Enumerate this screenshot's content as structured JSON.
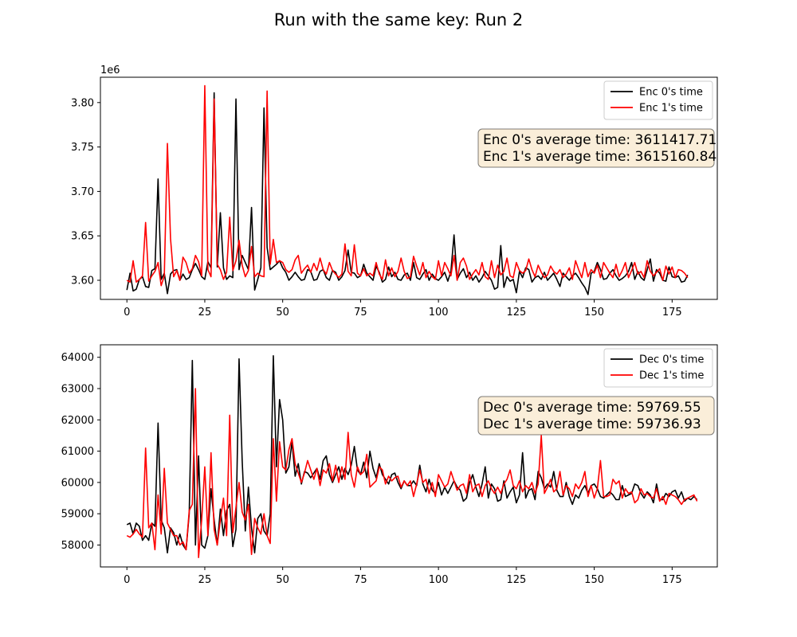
{
  "figure_title": "Run with the same key: Run 2",
  "chart_data": [
    {
      "type": "line",
      "id": "enc",
      "offset_label": "1e6",
      "xlim": [
        -8.5,
        189.5
      ],
      "ylim": [
        3.5785,
        3.8285
      ],
      "x_ticks": [
        0,
        25,
        50,
        75,
        100,
        125,
        150,
        175
      ],
      "y_ticks": [
        3.6,
        3.65,
        3.7,
        3.75,
        3.8
      ],
      "y_tick_labels": [
        "3.60",
        "3.65",
        "3.70",
        "3.75",
        "3.80"
      ],
      "legend_position": "top-right",
      "annotation": [
        "Enc 0's average time: 3611417.71",
        "Enc 1's average time: 3615160.84"
      ],
      "series": [
        {
          "name": "Enc 0's time",
          "color": "#000000",
          "y": [
            3.589,
            3.608,
            3.588,
            3.59,
            3.601,
            3.604,
            3.593,
            3.592,
            3.611,
            3.613,
            3.714,
            3.601,
            3.608,
            3.585,
            3.607,
            3.611,
            3.612,
            3.6,
            3.607,
            3.601,
            3.603,
            3.612,
            3.619,
            3.612,
            3.604,
            3.601,
            3.621,
            3.614,
            3.811,
            3.615,
            3.676,
            3.614,
            3.601,
            3.605,
            3.603,
            3.804,
            3.612,
            3.628,
            3.62,
            3.612,
            3.682,
            3.589,
            3.601,
            3.614,
            3.794,
            3.637,
            3.612,
            3.615,
            3.618,
            3.622,
            3.614,
            3.609,
            3.6,
            3.604,
            3.609,
            3.604,
            3.6,
            3.601,
            3.612,
            3.61,
            3.6,
            3.601,
            3.61,
            3.612,
            3.603,
            3.6,
            3.611,
            3.609,
            3.6,
            3.604,
            3.611,
            3.634,
            3.609,
            3.608,
            3.603,
            3.605,
            3.618,
            3.608,
            3.604,
            3.6,
            3.616,
            3.609,
            3.598,
            3.601,
            3.615,
            3.604,
            3.609,
            3.601,
            3.6,
            3.606,
            3.608,
            3.6,
            3.62,
            3.603,
            3.601,
            3.607,
            3.612,
            3.6,
            3.607,
            3.602,
            3.6,
            3.604,
            3.609,
            3.599,
            3.61,
            3.651,
            3.601,
            3.608,
            3.613,
            3.603,
            3.609,
            3.6,
            3.605,
            3.598,
            3.603,
            3.61,
            3.605,
            3.6,
            3.59,
            3.592,
            3.639,
            3.592,
            3.604,
            3.599,
            3.601,
            3.586,
            3.61,
            3.603,
            3.614,
            3.612,
            3.598,
            3.603,
            3.605,
            3.601,
            3.609,
            3.6,
            3.604,
            3.608,
            3.601,
            3.593,
            3.608,
            3.604,
            3.6,
            3.605,
            3.608,
            3.603,
            3.597,
            3.592,
            3.584,
            3.608,
            3.61,
            3.62,
            3.612,
            3.601,
            3.602,
            3.608,
            3.612,
            3.605,
            3.6,
            3.602,
            3.605,
            3.61,
            3.62,
            3.601,
            3.61,
            3.603,
            3.6,
            3.612,
            3.624,
            3.599,
            3.612,
            3.608,
            3.6,
            3.599,
            3.615,
            3.604,
            3.603,
            3.605,
            3.598,
            3.599,
            3.606
          ],
          "x_start": 0
        },
        {
          "name": "Enc 1's time",
          "color": "#ff0000",
          "y": [
            3.6,
            3.598,
            3.622,
            3.598,
            3.601,
            3.605,
            3.665,
            3.599,
            3.605,
            3.61,
            3.62,
            3.594,
            3.605,
            3.754,
            3.647,
            3.604,
            3.611,
            3.6,
            3.626,
            3.62,
            3.608,
            3.613,
            3.628,
            3.621,
            3.605,
            3.819,
            3.612,
            3.604,
            3.804,
            3.618,
            3.612,
            3.601,
            3.609,
            3.671,
            3.611,
            3.622,
            3.645,
            3.617,
            3.604,
            3.611,
            3.638,
            3.604,
            3.608,
            3.605,
            3.604,
            3.813,
            3.618,
            3.646,
            3.62,
            3.622,
            3.62,
            3.612,
            3.609,
            3.612,
            3.623,
            3.628,
            3.608,
            3.613,
            3.617,
            3.609,
            3.619,
            3.611,
            3.625,
            3.612,
            3.607,
            3.62,
            3.611,
            3.607,
            3.603,
            3.607,
            3.641,
            3.61,
            3.605,
            3.64,
            3.608,
            3.605,
            3.613,
            3.605,
            3.608,
            3.605,
            3.62,
            3.607,
            3.601,
            3.623,
            3.605,
            3.614,
            3.604,
            3.61,
            3.625,
            3.61,
            3.602,
            3.604,
            3.627,
            3.616,
            3.606,
            3.62,
            3.603,
            3.61,
            3.604,
            3.601,
            3.622,
            3.605,
            3.62,
            3.613,
            3.605,
            3.628,
            3.6,
            3.62,
            3.625,
            3.616,
            3.601,
            3.607,
            3.612,
            3.606,
            3.62,
            3.604,
            3.601,
            3.622,
            3.603,
            3.617,
            3.606,
            3.61,
            3.625,
            3.605,
            3.603,
            3.62,
            3.611,
            3.608,
            3.611,
            3.624,
            3.612,
            3.604,
            3.617,
            3.609,
            3.603,
            3.606,
            3.616,
            3.61,
            3.607,
            3.612,
            3.603,
            3.607,
            3.614,
            3.601,
            3.622,
            3.612,
            3.603,
            3.62,
            3.604,
            3.612,
            3.608,
            3.617,
            3.603,
            3.62,
            3.614,
            3.608,
            3.603,
            3.618,
            3.604,
            3.611,
            3.62,
            3.603,
            3.611,
            3.62,
            3.607,
            3.61,
            3.603,
            3.622,
            3.61,
            3.605,
            3.609,
            3.613,
            3.6,
            3.616,
            3.607,
            3.615,
            3.603,
            3.612,
            3.611,
            3.608,
            3.603
          ],
          "x_start": 0
        }
      ]
    },
    {
      "type": "line",
      "id": "dec",
      "xlim": [
        -8.5,
        189.5
      ],
      "ylim": [
        57300,
        64400
      ],
      "x_ticks": [
        0,
        25,
        50,
        75,
        100,
        125,
        150,
        175
      ],
      "y_ticks": [
        58000,
        59000,
        60000,
        61000,
        62000,
        63000,
        64000
      ],
      "y_tick_labels": [
        "58000",
        "59000",
        "60000",
        "61000",
        "62000",
        "63000",
        "64000"
      ],
      "legend_position": "top-right",
      "annotation": [
        "Dec 0's average time: 59769.55",
        "Dec 1's average time: 59736.93"
      ],
      "series": [
        {
          "name": "Dec 0's time",
          "color": "#000000",
          "y": [
            58650,
            58700,
            58350,
            58700,
            58600,
            58150,
            58300,
            58150,
            58700,
            58600,
            61900,
            58800,
            58550,
            57750,
            58550,
            58400,
            58000,
            58350,
            58000,
            57850,
            59000,
            63900,
            58000,
            60850,
            58000,
            57900,
            58300,
            59800,
            58800,
            58000,
            59150,
            58300,
            59100,
            59300,
            57950,
            58500,
            63950,
            60700,
            58450,
            59850,
            58550,
            57750,
            58850,
            59000,
            58450,
            58300,
            59000,
            64050,
            60500,
            62650,
            62000,
            60300,
            60500,
            61300,
            60200,
            60600,
            59950,
            60350,
            60300,
            60150,
            60300,
            60450,
            60100,
            60700,
            60850,
            60250,
            60000,
            60250,
            60500,
            60100,
            60450,
            60250,
            60550,
            61150,
            60400,
            60250,
            60650,
            60150,
            61000,
            60450,
            60150,
            60600,
            60250,
            60100,
            59950,
            60250,
            60300,
            60000,
            59800,
            60050,
            59900,
            59900,
            60050,
            59900,
            60550,
            59950,
            59700,
            60100,
            59750,
            59650,
            60000,
            59600,
            59850,
            59650,
            59850,
            60050,
            59850,
            59750,
            59400,
            59500,
            60000,
            60250,
            59850,
            59550,
            59950,
            60500,
            59500,
            59950,
            59800,
            59400,
            59450,
            60050,
            59500,
            59700,
            59850,
            59350,
            59600,
            60950,
            59500,
            59750,
            59800,
            59450,
            60350,
            60150,
            59800,
            59950,
            59850,
            60350,
            59750,
            59550,
            59550,
            60000,
            59550,
            59300,
            59600,
            59500,
            59750,
            59900,
            59650,
            59900,
            59950,
            59800,
            59550,
            59500,
            59600,
            59700,
            59600,
            59450,
            59450,
            59900,
            59550,
            59600,
            59650,
            59950,
            59900,
            59650,
            59500,
            59700,
            59600,
            59350,
            59950,
            59450,
            59450,
            59650,
            59550,
            59700,
            59750,
            59500,
            59700,
            59400,
            59500,
            59450,
            59550,
            59450
          ],
          "x_start": 0
        },
        {
          "name": "Dec 1's time",
          "color": "#ff0000",
          "y": [
            58300,
            58250,
            58350,
            58500,
            58350,
            58250,
            61100,
            58550,
            58700,
            57850,
            59600,
            58350,
            60450,
            58700,
            58500,
            58300,
            58300,
            58000,
            58100,
            57850,
            59100,
            59300,
            63000,
            57600,
            58800,
            60500,
            58300,
            60950,
            58500,
            58000,
            58800,
            59500,
            58300,
            62150,
            58400,
            59200,
            60000,
            59050,
            58800,
            59300,
            57700,
            58850,
            58550,
            58350,
            59000,
            58300,
            58050,
            61400,
            59400,
            61300,
            60500,
            60400,
            61050,
            61400,
            60600,
            60300,
            60000,
            60300,
            60700,
            60400,
            60100,
            60450,
            59900,
            60400,
            60300,
            60600,
            60050,
            60550,
            60000,
            60500,
            60100,
            61600,
            60250,
            59850,
            60500,
            60250,
            60350,
            60900,
            59850,
            59950,
            60050,
            60500,
            60400,
            59950,
            60200,
            60050,
            60150,
            60200,
            59850,
            60050,
            59900,
            60050,
            59550,
            59950,
            60400,
            60000,
            60100,
            59650,
            60000,
            59550,
            60250,
            60050,
            59850,
            59950,
            60350,
            60050,
            59750,
            59900,
            59950,
            59650,
            60250,
            59700,
            59900,
            59950,
            59550,
            59900,
            60050,
            59800,
            59650,
            59850,
            59650,
            59950,
            60100,
            60400,
            59900,
            59800,
            60050,
            59700,
            59900,
            59800,
            60000,
            59650,
            59950,
            61500,
            59650,
            59850,
            60100,
            59700,
            59800,
            60350,
            59600,
            59900,
            59800,
            59550,
            59950,
            59800,
            60000,
            60350,
            59550,
            59900,
            59500,
            59800,
            60700,
            59550,
            59550,
            59600,
            60100,
            59950,
            60050,
            59500,
            59800,
            59650,
            59700,
            59350,
            59450,
            59800,
            59600,
            59650,
            59550,
            59500,
            59800,
            59400,
            59550,
            59300,
            59650,
            59600,
            59550,
            59450,
            59300,
            59450,
            59500,
            59550,
            59600,
            59400
          ]
        }
      ]
    }
  ]
}
